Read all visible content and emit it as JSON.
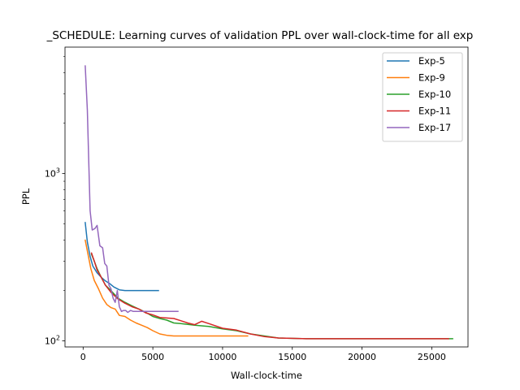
{
  "chart_data": {
    "type": "line",
    "title": "_SCHEDULE: Learning curves of validation PPL over wall-clock-time for all exp",
    "xlabel": "Wall-clock-time",
    "ylabel": "PPL",
    "xlim": [
      -1300,
      27600
    ],
    "ylim": [
      92,
      5700
    ],
    "yscale": "log",
    "xticks": [
      0,
      5000,
      10000,
      15000,
      20000,
      25000
    ],
    "xtick_labels": [
      "0",
      "5000",
      "10000",
      "15000",
      "20000",
      "25000"
    ],
    "ytick_labels": [
      {
        "value": 100,
        "base": "10",
        "exp": "2"
      },
      {
        "value": 1000,
        "base": "10",
        "exp": "3"
      }
    ],
    "grid": false,
    "legend_position": "top-right",
    "series": [
      {
        "name": "Exp-5",
        "color": "#1f77b4",
        "x": [
          150,
          300,
          500,
          700,
          1000,
          1300,
          1600,
          1900,
          2200,
          2600,
          3000,
          3500,
          4000,
          4500,
          5000,
          5400
        ],
        "y": [
          510,
          390,
          320,
          280,
          255,
          240,
          228,
          220,
          210,
          202,
          200,
          200,
          200,
          200,
          200,
          200
        ]
      },
      {
        "name": "Exp-9",
        "color": "#ff7f0e",
        "x": [
          150,
          350,
          550,
          800,
          1100,
          1400,
          1700,
          2000,
          2300,
          2600,
          3000,
          3400,
          3800,
          4200,
          4600,
          5000,
          5500,
          6000,
          6500,
          7000,
          8000,
          9000,
          10000,
          11000,
          11800
        ],
        "y": [
          400,
          330,
          270,
          230,
          205,
          180,
          165,
          158,
          155,
          142,
          140,
          133,
          128,
          124,
          120,
          115,
          110,
          108,
          107,
          107,
          107,
          107,
          107,
          107,
          107
        ]
      },
      {
        "name": "Exp-10",
        "color": "#2ca02c",
        "x": [
          600,
          800,
          1000,
          1300,
          1600,
          2000,
          2500,
          3000,
          3500,
          4000,
          4500,
          5000,
          5500,
          6000,
          6500,
          7000,
          8000,
          9000,
          10000,
          11000,
          12000,
          13000,
          14000,
          16000,
          18000,
          20000,
          22000,
          24000,
          26500
        ],
        "y": [
          330,
          300,
          270,
          240,
          215,
          200,
          180,
          170,
          162,
          155,
          148,
          140,
          136,
          133,
          128,
          127,
          124,
          122,
          118,
          115,
          110,
          107,
          104,
          103,
          103,
          103,
          103,
          103,
          103
        ]
      },
      {
        "name": "Exp-11",
        "color": "#d62728",
        "x": [
          600,
          800,
          1000,
          1300,
          1600,
          2000,
          2500,
          3000,
          3500,
          4000,
          4500,
          5000,
          5500,
          6000,
          6500,
          7000,
          7500,
          8000,
          8500,
          9000,
          10000,
          11000,
          12000,
          13000,
          14000,
          16000,
          18000,
          20000,
          22000,
          24000,
          26200
        ],
        "y": [
          335,
          300,
          265,
          240,
          215,
          195,
          178,
          168,
          160,
          155,
          147,
          143,
          138,
          137,
          136,
          132,
          128,
          125,
          131,
          127,
          119,
          116,
          110,
          106,
          104,
          103,
          103,
          103,
          103,
          103,
          103
        ]
      },
      {
        "name": "Exp-17",
        "color": "#9467bd",
        "x": [
          150,
          300,
          500,
          650,
          850,
          1000,
          1200,
          1400,
          1550,
          1700,
          1850,
          2000,
          2150,
          2300,
          2450,
          2600,
          2750,
          2900,
          3050,
          3200,
          3400,
          3600,
          3900,
          4200,
          4500,
          5000,
          5500,
          6000,
          6800
        ],
        "y": [
          4400,
          2400,
          600,
          460,
          470,
          490,
          370,
          360,
          290,
          280,
          215,
          205,
          180,
          170,
          200,
          160,
          150,
          152,
          152,
          148,
          152,
          150,
          150,
          150,
          150,
          150,
          150,
          150,
          150
        ]
      }
    ]
  }
}
